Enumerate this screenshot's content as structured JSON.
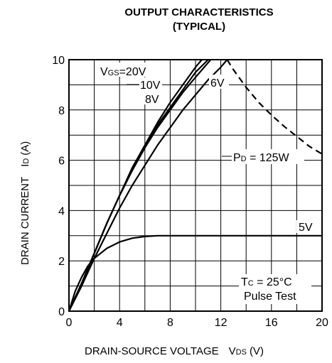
{
  "chart_data": {
    "type": "line",
    "title": "OUTPUT CHARACTERISTICS",
    "subtitle": "(TYPICAL)",
    "xlabel": {
      "main": "DRAIN-SOURCE VOLTAGE",
      "sym": "V",
      "sub": "DS",
      "unit": "(V)"
    },
    "ylabel": {
      "main": "DRAIN CURRENT",
      "sym": "I",
      "sub": "D",
      "unit": "(A)"
    },
    "xlim": [
      0,
      20
    ],
    "ylim": [
      0,
      10
    ],
    "x_ticks": [
      "0",
      "4",
      "8",
      "12",
      "16",
      "20"
    ],
    "y_ticks": [
      "0",
      "2",
      "4",
      "6",
      "8",
      "10"
    ],
    "grid": true,
    "series": [
      {
        "name": "VGS=20V",
        "x": [
          0,
          1,
          2,
          3,
          4,
          5,
          6,
          7,
          8,
          9,
          10,
          10.5
        ],
        "y": [
          0,
          1.1,
          2.3,
          3.5,
          4.6,
          5.7,
          6.6,
          7.5,
          8.3,
          9.0,
          9.7,
          10
        ]
      },
      {
        "name": "10V",
        "x": [
          0,
          1,
          2,
          3,
          4,
          5,
          6,
          7,
          8,
          9,
          10,
          11
        ],
        "y": [
          0,
          1.1,
          2.3,
          3.5,
          4.6,
          5.6,
          6.5,
          7.4,
          8.1,
          8.8,
          9.5,
          10
        ]
      },
      {
        "name": "8V",
        "x": [
          0,
          1,
          2,
          3,
          4,
          5,
          6,
          7,
          8,
          9,
          10,
          11.2
        ],
        "y": [
          0,
          1.1,
          2.3,
          3.5,
          4.6,
          5.6,
          6.5,
          7.3,
          8.0,
          8.7,
          9.3,
          10
        ]
      },
      {
        "name": "6V",
        "x": [
          0,
          1,
          2,
          3,
          4,
          5,
          6,
          7,
          8,
          9,
          10,
          11,
          12,
          12.5
        ],
        "y": [
          0,
          1.0,
          2.1,
          3.1,
          4.1,
          5.0,
          5.8,
          6.6,
          7.3,
          8.0,
          8.6,
          9.2,
          9.7,
          10
        ]
      },
      {
        "name": "5V",
        "x": [
          0,
          0.5,
          1,
          1.5,
          2,
          3,
          4,
          5,
          6,
          7,
          7.5,
          8,
          20
        ],
        "y": [
          0,
          0.8,
          1.35,
          1.8,
          2.1,
          2.5,
          2.75,
          2.9,
          2.97,
          3.0,
          3.0,
          3.0,
          3.0
        ]
      },
      {
        "name": "PD = 125W",
        "style": "dashed",
        "x": [
          12.5,
          13,
          14,
          15,
          16,
          17,
          18,
          19,
          20
        ],
        "y": [
          10,
          9.6,
          8.9,
          8.3,
          7.8,
          7.35,
          6.95,
          6.55,
          6.25
        ]
      }
    ],
    "annotations": {
      "vgs_prefix": "V",
      "vgs_sub": "GS",
      "vgs_rest": "=20V",
      "l10": "10V",
      "l8": "8V",
      "l6": "6V",
      "l5": "5V",
      "pd_prefix": "P",
      "pd_sub": "D",
      "pd_rest": " = 125W",
      "tc_prefix": "T",
      "tc_sub": "C",
      "tc_rest": " = 25°C",
      "pulse": "Pulse Test"
    }
  }
}
